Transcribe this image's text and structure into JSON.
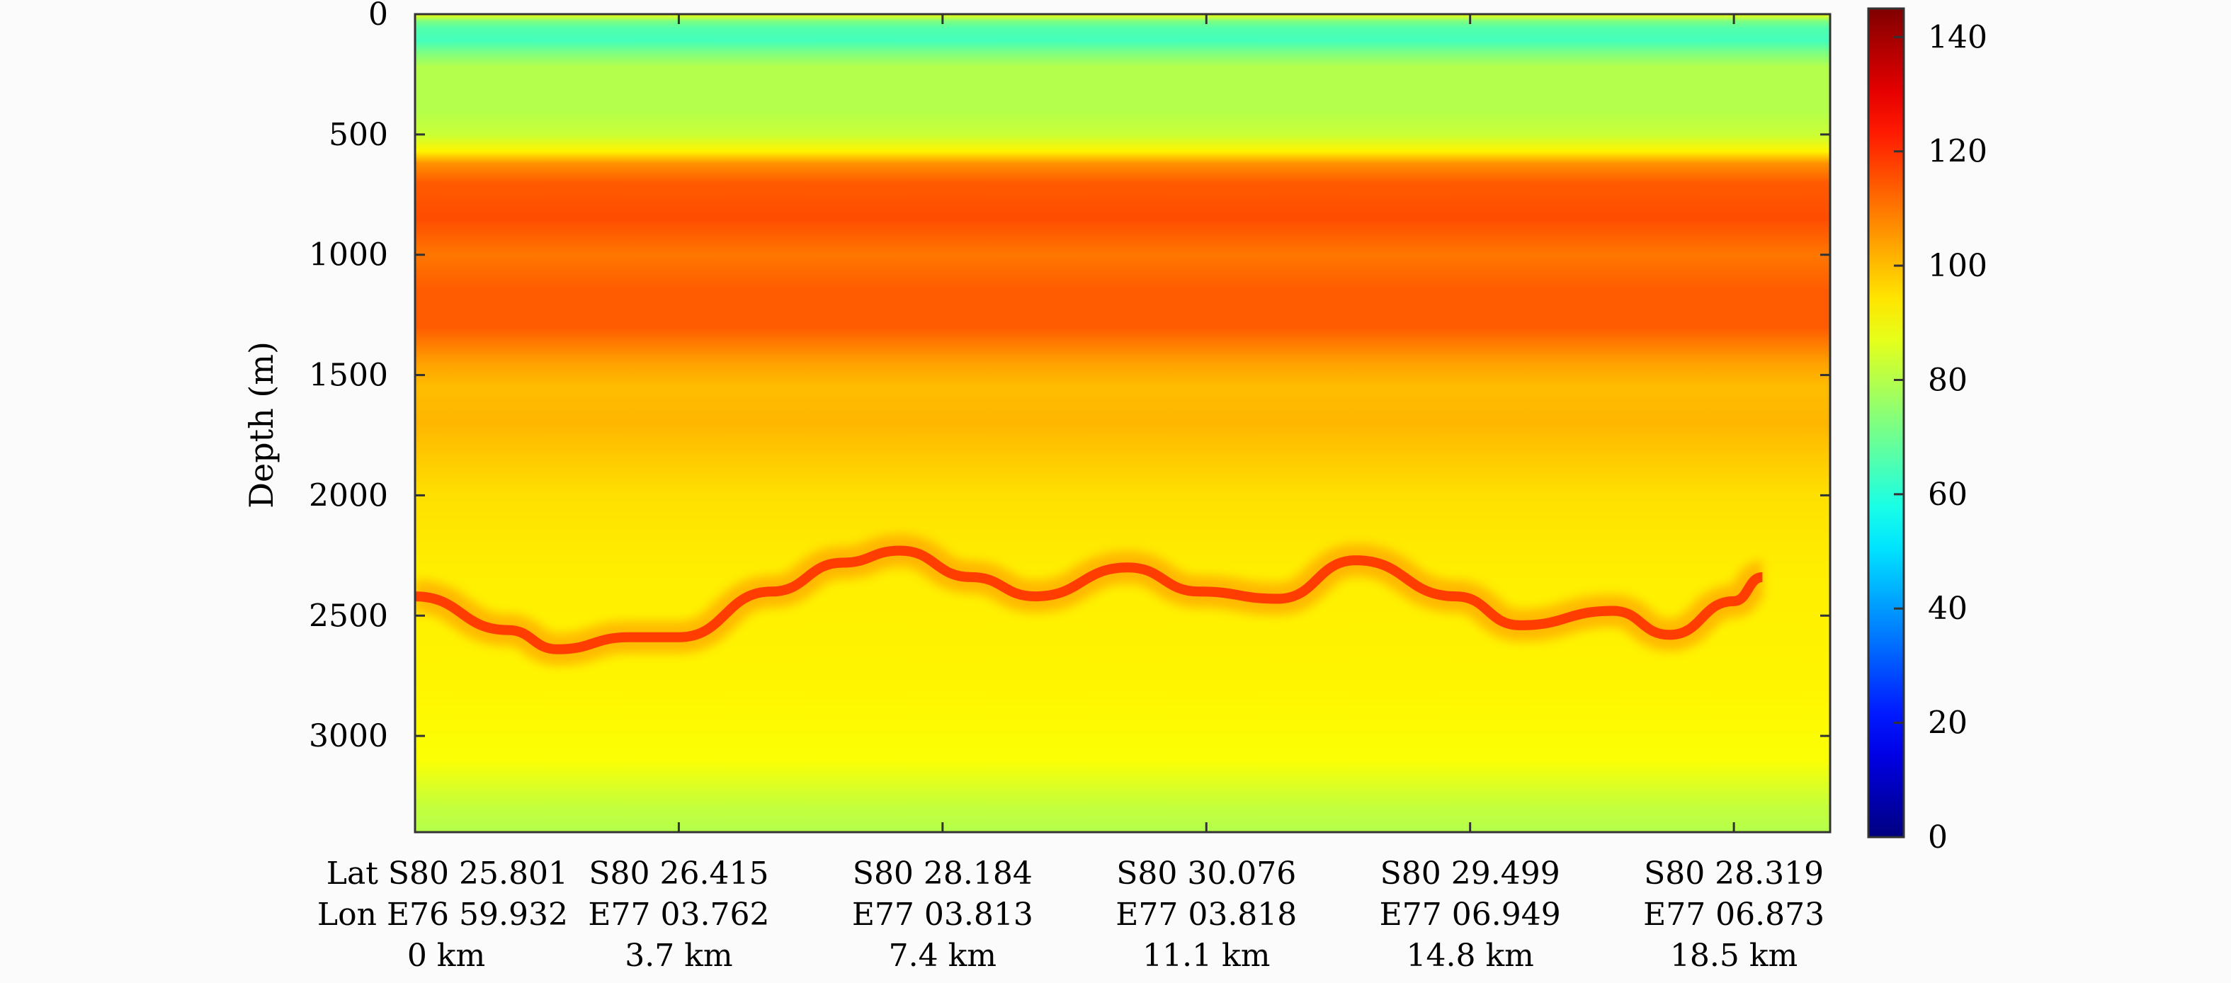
{
  "chart_data": {
    "type": "heatmap",
    "title": "",
    "ylabel": "Depth (m)",
    "xlabel": "",
    "ylim": [
      0,
      3400
    ],
    "y_reversed": true,
    "y_ticks": [
      0,
      500,
      1000,
      1500,
      2000,
      2500,
      3000
    ],
    "y_tick_labels": [
      "0",
      "500",
      "1000",
      "1500",
      "2000",
      "2500",
      "3000"
    ],
    "x_ticks_km": [
      0,
      3.7,
      7.4,
      11.1,
      14.8,
      18.5
    ],
    "x_tick_labels": [
      {
        "lat": "Lat S80 25.801",
        "lon": "Lon E76 59.932",
        "dist": "0 km"
      },
      {
        "lat": "S80 26.415",
        "lon": "E77 03.762",
        "dist": "3.7 km"
      },
      {
        "lat": "S80 28.184",
        "lon": "E77 03.813",
        "dist": "7.4 km"
      },
      {
        "lat": "S80 30.076",
        "lon": "E77 03.818",
        "dist": "11.1 km"
      },
      {
        "lat": "S80 29.499",
        "lon": "E77 06.949",
        "dist": "14.8 km"
      },
      {
        "lat": "S80 28.319",
        "lon": "E77 06.873",
        "dist": "18.5 km"
      }
    ],
    "colorbar": {
      "range": [
        0,
        145
      ],
      "ticks": [
        0,
        20,
        40,
        60,
        80,
        100,
        120,
        140
      ],
      "tick_labels": [
        "0",
        "20",
        "40",
        "60",
        "80",
        "100",
        "120",
        "140"
      ],
      "colormap": "jet"
    },
    "depth_profile": [
      {
        "depth": 0,
        "value": 90
      },
      {
        "depth": 30,
        "value": 72
      },
      {
        "depth": 60,
        "value": 66
      },
      {
        "depth": 110,
        "value": 64
      },
      {
        "depth": 160,
        "value": 72
      },
      {
        "depth": 220,
        "value": 80
      },
      {
        "depth": 400,
        "value": 80
      },
      {
        "depth": 500,
        "value": 83
      },
      {
        "depth": 570,
        "value": 92
      },
      {
        "depth": 620,
        "value": 106
      },
      {
        "depth": 700,
        "value": 114
      },
      {
        "depth": 850,
        "value": 116
      },
      {
        "depth": 1000,
        "value": 110
      },
      {
        "depth": 1150,
        "value": 114
      },
      {
        "depth": 1300,
        "value": 114
      },
      {
        "depth": 1450,
        "value": 104
      },
      {
        "depth": 1550,
        "value": 100
      },
      {
        "depth": 1700,
        "value": 101
      },
      {
        "depth": 1850,
        "value": 98
      },
      {
        "depth": 2000,
        "value": 95
      },
      {
        "depth": 2300,
        "value": 93
      },
      {
        "depth": 2800,
        "value": 92
      },
      {
        "depth": 3100,
        "value": 90
      },
      {
        "depth": 3200,
        "value": 86
      },
      {
        "depth": 3300,
        "value": 82
      },
      {
        "depth": 3400,
        "value": 80
      }
    ],
    "bed_reflector": [
      {
        "km": 0,
        "depth": 2420
      },
      {
        "km": 1.3,
        "depth": 2560
      },
      {
        "km": 2.0,
        "depth": 2640
      },
      {
        "km": 3.0,
        "depth": 2590
      },
      {
        "km": 3.7,
        "depth": 2590
      },
      {
        "km": 5.0,
        "depth": 2400
      },
      {
        "km": 6.0,
        "depth": 2280
      },
      {
        "km": 6.8,
        "depth": 2230
      },
      {
        "km": 7.8,
        "depth": 2340
      },
      {
        "km": 8.7,
        "depth": 2420
      },
      {
        "km": 10.0,
        "depth": 2300
      },
      {
        "km": 11.0,
        "depth": 2400
      },
      {
        "km": 12.1,
        "depth": 2430
      },
      {
        "km": 13.2,
        "depth": 2270
      },
      {
        "km": 14.6,
        "depth": 2420
      },
      {
        "km": 15.5,
        "depth": 2540
      },
      {
        "km": 16.8,
        "depth": 2480
      },
      {
        "km": 17.6,
        "depth": 2580
      },
      {
        "km": 18.5,
        "depth": 2440
      },
      {
        "km": 18.9,
        "depth": 2340
      }
    ],
    "bed_reflector_value": 120
  }
}
